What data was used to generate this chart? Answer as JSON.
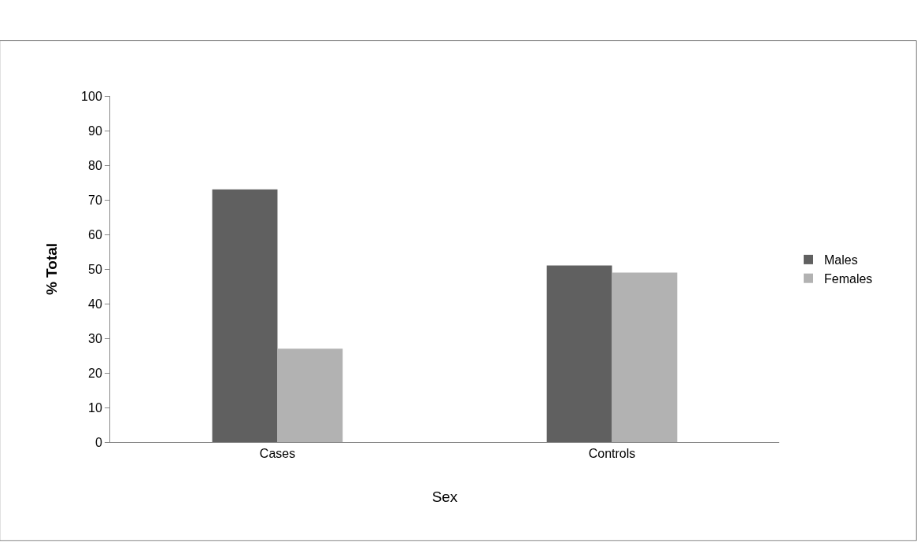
{
  "chart_data": {
    "type": "bar",
    "xlabel": "Sex",
    "ylabel": "% Total",
    "categories": [
      "Cases",
      "Controls"
    ],
    "series": [
      {
        "name": "Males",
        "color": "#606060",
        "values": [
          73,
          51
        ]
      },
      {
        "name": "Females",
        "color": "#b2b2b2",
        "values": [
          27,
          49
        ]
      }
    ],
    "ylim": [
      0,
      100
    ],
    "yticks": [
      0,
      10,
      20,
      30,
      40,
      50,
      60,
      70,
      80,
      90,
      100
    ],
    "grid": false,
    "legend": "right"
  }
}
